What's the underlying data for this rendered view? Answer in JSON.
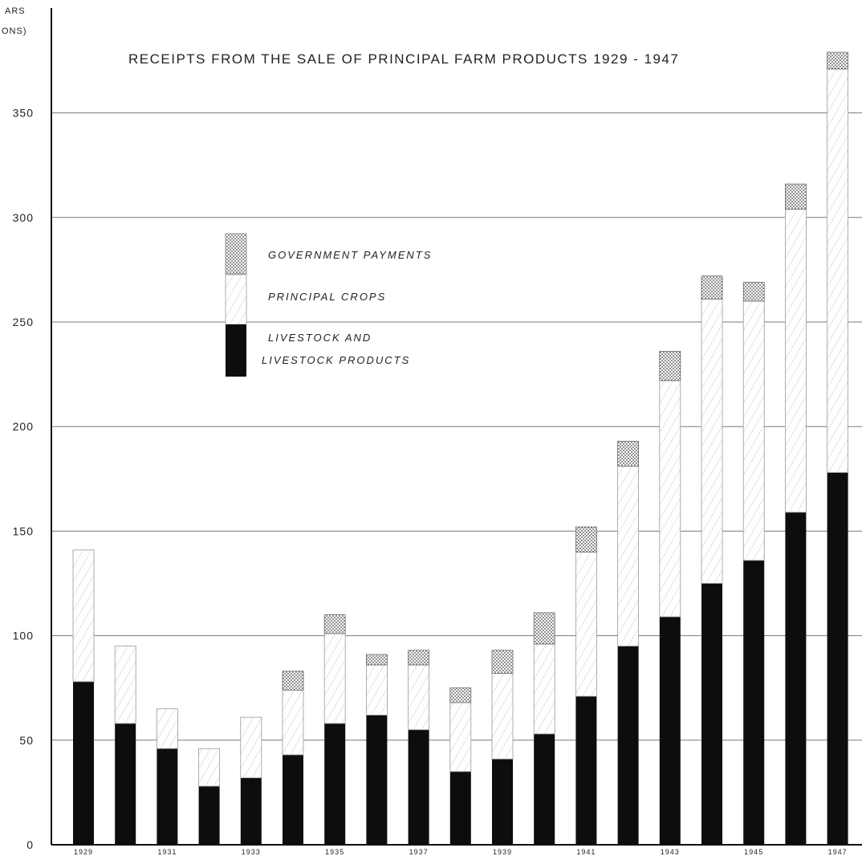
{
  "chart_data": {
    "type": "bar",
    "stacked": true,
    "title": "RECEIPTS FROM THE SALE OF PRINCIPAL FARM PRODUCTS 1929 - 1947",
    "ylabel_lines": [
      "ARS",
      "ONS)"
    ],
    "ylim": [
      0,
      380
    ],
    "yticks": [
      0,
      50,
      100,
      150,
      200,
      250,
      300,
      350
    ],
    "ytick_labels": [
      "0",
      "50",
      "100",
      "150",
      "200",
      "250",
      "300",
      "350"
    ],
    "grid": true,
    "legend_position": "upper-left",
    "categories": [
      "1929",
      "1930",
      "1931",
      "1932",
      "1933",
      "1934",
      "1935",
      "1936",
      "1937",
      "1938",
      "1939",
      "1940",
      "1941",
      "1942",
      "1943",
      "1944",
      "1945",
      "1946",
      "1947"
    ],
    "x_tick_labels": [
      "1929",
      "",
      "1931",
      "",
      "1933",
      "",
      "1935",
      "",
      "1937",
      "",
      "1939",
      "",
      "1941",
      "",
      "1943",
      "",
      "1945",
      "",
      "1947"
    ],
    "series": [
      {
        "name": "LIVESTOCK AND LIVESTOCK PRODUCTS",
        "name_lines": [
          "LIVESTOCK  AND",
          "LIVESTOCK  PRODUCTS"
        ],
        "pattern": "solid-black",
        "values": [
          78,
          58,
          46,
          28,
          32,
          43,
          58,
          62,
          55,
          35,
          41,
          53,
          71,
          95,
          109,
          125,
          136,
          159,
          178
        ]
      },
      {
        "name": "PRINCIPAL CROPS",
        "name_lines": [
          "PRINCIPAL  CROPS"
        ],
        "pattern": "light-hatch",
        "values": [
          63,
          37,
          19,
          18,
          29,
          31,
          43,
          24,
          31,
          33,
          41,
          43,
          69,
          86,
          113,
          136,
          124,
          145,
          193
        ]
      },
      {
        "name": "GOVERNMENT PAYMENTS",
        "name_lines": [
          "GOVERNMENT  PAYMENTS"
        ],
        "pattern": "dotted",
        "values": [
          0,
          0,
          0,
          0,
          0,
          9,
          9,
          5,
          7,
          7,
          11,
          15,
          12,
          12,
          14,
          11,
          9,
          12,
          8
        ]
      }
    ]
  }
}
